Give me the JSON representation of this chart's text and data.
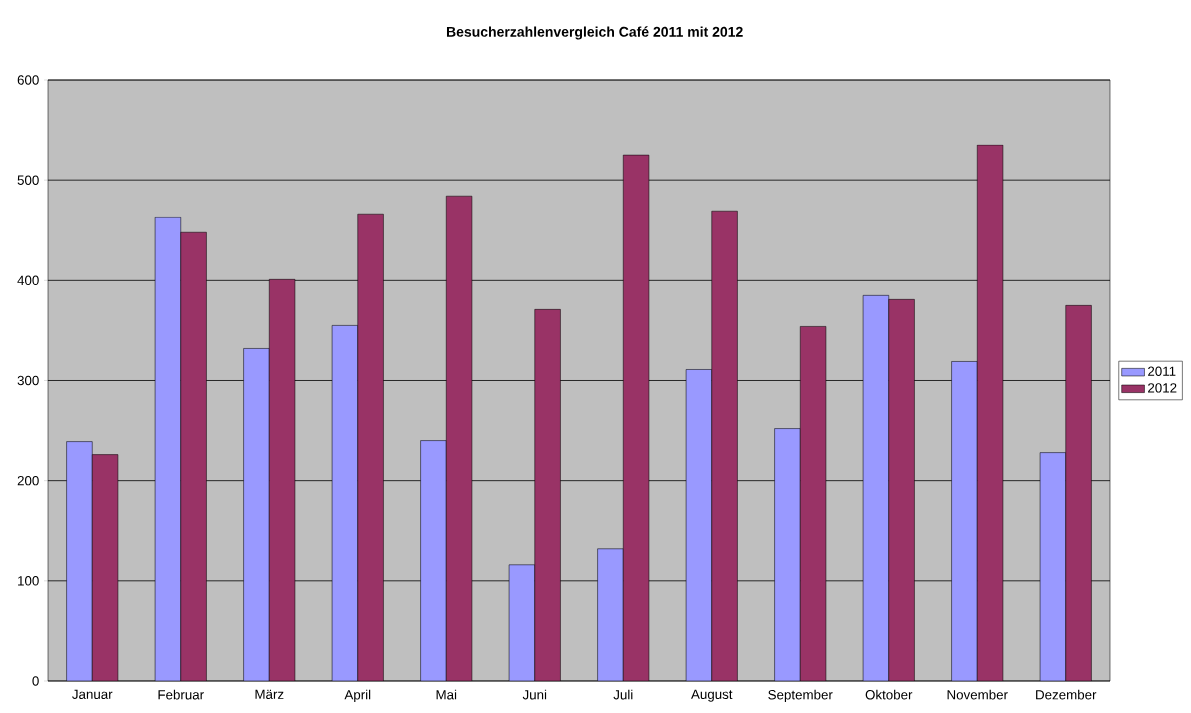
{
  "chart_data": {
    "type": "bar",
    "title": "Besucherzahlenvergleich Café 2011 mit 2012",
    "categories": [
      "Januar",
      "Februar",
      "März",
      "April",
      "Mai",
      "Juni",
      "Juli",
      "August",
      "September",
      "Oktober",
      "November",
      "Dezember"
    ],
    "series": [
      {
        "name": "2011",
        "color": "#9999ff",
        "values": [
          239,
          463,
          332,
          355,
          240,
          116,
          132,
          311,
          252,
          385,
          319,
          228
        ]
      },
      {
        "name": "2012",
        "color": "#993366",
        "values": [
          226,
          448,
          401,
          466,
          484,
          371,
          525,
          469,
          354,
          381,
          535,
          375
        ]
      }
    ],
    "ylim": [
      0,
      600
    ],
    "yticks": [
      0,
      100,
      200,
      300,
      400,
      500,
      600
    ],
    "grid": "y",
    "legend": "right"
  }
}
